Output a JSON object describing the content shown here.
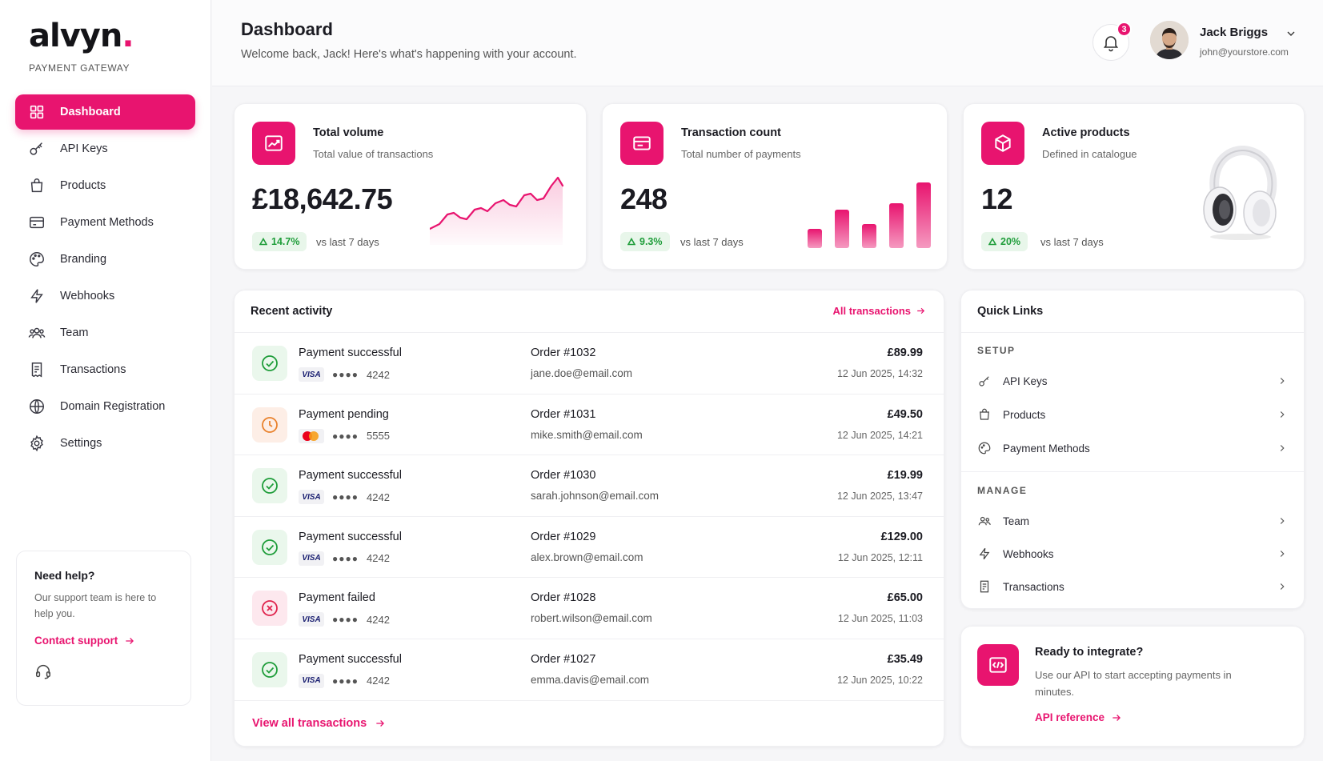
{
  "brand": {
    "logo": "alvyn",
    "subtitle": "PAYMENT GATEWAY",
    "accent": "#e8146f"
  },
  "sidebar": {
    "items": [
      {
        "label": "Dashboard",
        "icon": "grid-icon",
        "active": true
      },
      {
        "label": "API Keys",
        "icon": "key-icon"
      },
      {
        "label": "Products",
        "icon": "bag-icon"
      },
      {
        "label": "Payment Methods",
        "icon": "card-icon"
      },
      {
        "label": "Branding",
        "icon": "palette-icon"
      },
      {
        "label": "Webhooks",
        "icon": "bolt-icon"
      },
      {
        "label": "Team",
        "icon": "users-icon"
      },
      {
        "label": "Transactions",
        "icon": "receipt-icon"
      },
      {
        "label": "Domain Registration",
        "icon": "globe-icon"
      },
      {
        "label": "Settings",
        "icon": "gear-icon"
      }
    ],
    "help": {
      "title": "Need help?",
      "text": "Our support team is here to help you.",
      "link": "Contact support"
    }
  },
  "header": {
    "title": "Dashboard",
    "subtitle": "Welcome back, Jack! Here's what's happening with your account.",
    "notifications": "3",
    "user_name": "Jack Briggs",
    "user_email": "john@yourstore.com"
  },
  "stats": {
    "volume": {
      "title": "Total volume",
      "sub": "Total value of transactions",
      "value": "£18,642.75",
      "delta": "14.7%",
      "delta_label": "vs last 7 days"
    },
    "count": {
      "title": "Transaction count",
      "sub": "Total number of payments",
      "value": "248",
      "delta": "9.3%",
      "delta_label": "vs last 7 days"
    },
    "products": {
      "title": "Active products",
      "sub": "Defined in catalogue",
      "value": "12",
      "delta": "20%",
      "delta_label": "vs last 7 days"
    }
  },
  "activity": {
    "title": "Recent activity",
    "all_link": "All transactions",
    "footer_link": "View all transactions",
    "rows": [
      {
        "status": "ok",
        "title": "Payment successful",
        "brand": "VISA",
        "last4": "4242",
        "order": "Order #1032",
        "email": "jane.doe@email.com",
        "amount": "£89.99",
        "date": "12 Jun 2025, 14:32"
      },
      {
        "status": "pend",
        "title": "Payment pending",
        "brand": "MC",
        "last4": "5555",
        "order": "Order #1031",
        "email": "mike.smith@email.com",
        "amount": "£49.50",
        "date": "12 Jun 2025, 14:21"
      },
      {
        "status": "ok",
        "title": "Payment successful",
        "brand": "VISA",
        "last4": "4242",
        "order": "Order #1030",
        "email": "sarah.johnson@email.com",
        "amount": "£19.99",
        "date": "12 Jun 2025, 13:47"
      },
      {
        "status": "ok",
        "title": "Payment successful",
        "brand": "VISA",
        "last4": "4242",
        "order": "Order #1029",
        "email": "alex.brown@email.com",
        "amount": "£129.00",
        "date": "12 Jun 2025, 12:11"
      },
      {
        "status": "fail",
        "title": "Payment failed",
        "brand": "VISA",
        "last4": "4242",
        "order": "Order #1028",
        "email": "robert.wilson@email.com",
        "amount": "£65.00",
        "date": "12 Jun 2025, 11:03"
      },
      {
        "status": "ok",
        "title": "Payment successful",
        "brand": "VISA",
        "last4": "4242",
        "order": "Order #1027",
        "email": "emma.davis@email.com",
        "amount": "£35.49",
        "date": "12 Jun 2025, 10:22"
      }
    ]
  },
  "quick_links": {
    "title": "Quick Links",
    "setup_label": "SETUP",
    "manage_label": "MANAGE",
    "setup": [
      {
        "label": "API Keys",
        "icon": "key-icon"
      },
      {
        "label": "Products",
        "icon": "bag-icon"
      },
      {
        "label": "Payment Methods",
        "icon": "palette-icon"
      }
    ],
    "manage": [
      {
        "label": "Team",
        "icon": "users-icon"
      },
      {
        "label": "Webhooks",
        "icon": "bolt-icon"
      },
      {
        "label": "Transactions",
        "icon": "receipt-icon"
      }
    ]
  },
  "integrate": {
    "title": "Ready to integrate?",
    "text": "Use our API to start accepting payments in minutes.",
    "link": "API reference"
  }
}
